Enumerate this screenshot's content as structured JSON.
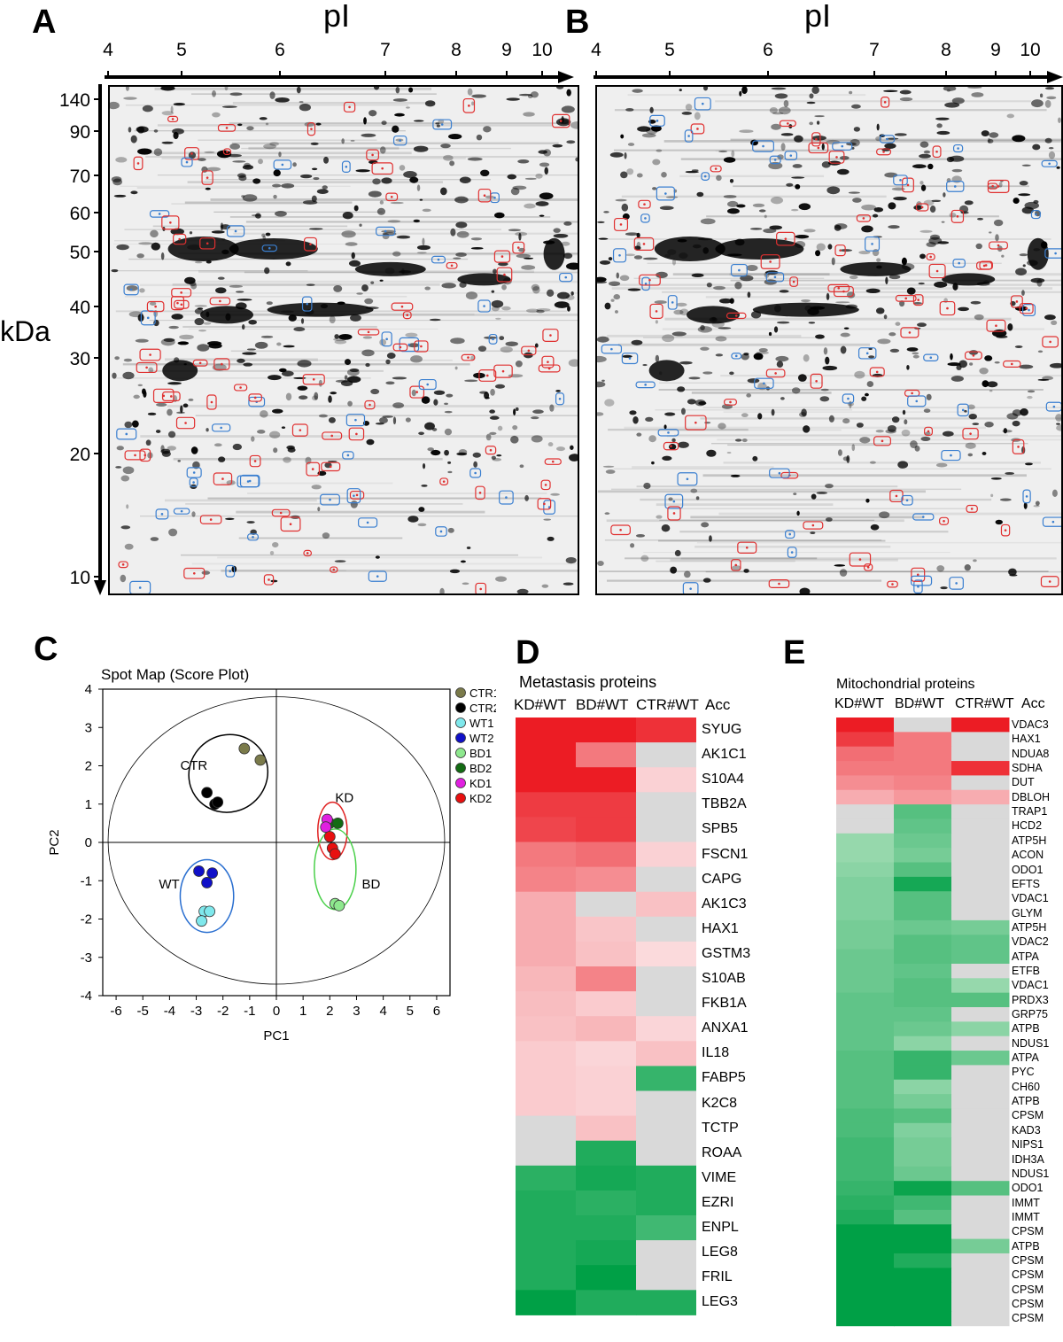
{
  "panels": {
    "A": "A",
    "B": "B",
    "C": "C",
    "D": "D",
    "E": "E"
  },
  "gel": {
    "x_axis_label": "pI",
    "y_axis_label": "kDa",
    "pi_ticks": [
      "4",
      "5",
      "6",
      "7",
      "8",
      "9",
      "10"
    ],
    "pi_values": [
      4,
      5,
      6,
      7,
      8,
      9,
      10
    ],
    "mw_ticks": [
      "140",
      "90",
      "70",
      "60",
      "50",
      "40",
      "30",
      "20",
      "10"
    ],
    "colors": {
      "up": "#e03030",
      "down": "#3a7fd0"
    }
  },
  "score_plot": {
    "title": "Spot Map (Score Plot)",
    "chart_data": {
      "type": "scatter",
      "title": "Spot Map (Score Plot)",
      "xlabel": "PC1",
      "ylabel": "PC2",
      "xlim": [
        -6.5,
        6.5
      ],
      "ylim": [
        -4,
        4
      ],
      "x_ticks": [
        -6,
        -5,
        -4,
        -3,
        -2,
        -1,
        0,
        1,
        2,
        3,
        4,
        5,
        6
      ],
      "y_ticks": [
        4,
        3,
        2,
        1,
        0,
        -1,
        -2,
        -3,
        -4
      ],
      "series": [
        {
          "name": "CTR1",
          "color": "#7a7a4a",
          "points": [
            [
              -1.2,
              2.45
            ],
            [
              -0.6,
              2.15
            ]
          ]
        },
        {
          "name": "CTR2",
          "color": "#000000",
          "points": [
            [
              -2.6,
              1.3
            ],
            [
              -2.3,
              1.0
            ],
            [
              -2.2,
              1.05
            ]
          ]
        },
        {
          "name": "WT1",
          "color": "#7fe8ec",
          "points": [
            [
              -2.7,
              -1.8
            ],
            [
              -2.5,
              -1.8
            ],
            [
              -2.8,
              -2.05
            ]
          ]
        },
        {
          "name": "WT2",
          "color": "#1010c8",
          "points": [
            [
              -2.9,
              -0.75
            ],
            [
              -2.4,
              -0.8
            ],
            [
              -2.6,
              -1.05
            ]
          ]
        },
        {
          "name": "BD1",
          "color": "#8ee88e",
          "points": [
            [
              2.2,
              -1.6
            ],
            [
              2.35,
              -1.65
            ]
          ]
        },
        {
          "name": "BD2",
          "color": "#136b13",
          "points": [
            [
              2.0,
              0.5
            ],
            [
              2.3,
              0.5
            ]
          ]
        },
        {
          "name": "KD1",
          "color": "#e020e0",
          "points": [
            [
              1.9,
              0.6
            ],
            [
              1.85,
              0.4
            ]
          ]
        },
        {
          "name": "KD2",
          "color": "#e81010",
          "points": [
            [
              2.0,
              0.15
            ],
            [
              2.1,
              -0.15
            ],
            [
              2.2,
              -0.3
            ]
          ]
        }
      ],
      "groups": [
        {
          "label": "CTR",
          "color": "#000000"
        },
        {
          "label": "WT",
          "color": "#2a6fd0"
        },
        {
          "label": "KD",
          "color": "#e02020"
        },
        {
          "label": "BD",
          "color": "#4ad04a"
        }
      ]
    }
  },
  "metastasis": {
    "title": "Metastasis proteins",
    "col_labels": [
      "KD#WT",
      "BD#WT",
      "CTR#WT",
      "Acc"
    ],
    "chart_data": {
      "type": "heatmap",
      "title": "Metastasis proteins",
      "columns": [
        "KD#WT",
        "BD#WT",
        "CTR#WT"
      ],
      "rows": [
        "SYUG",
        "AK1C1",
        "S10A4",
        "TBB2A",
        "SPB5",
        "FSCN1",
        "CAPG",
        "AK1C3",
        "HAX1",
        "GSTM3",
        "S10AB",
        "FKB1A",
        "ANXA1",
        "IL18",
        "FABP5",
        "K2C8",
        "TCTP",
        "ROAA",
        "VIME",
        "EZRI",
        "ENPL",
        "LEG8",
        "FRIL",
        "LEG3"
      ],
      "values": [
        [
          1.0,
          1.0,
          0.9
        ],
        [
          1.0,
          0.55,
          null
        ],
        [
          1.0,
          1.0,
          0.12
        ],
        [
          0.85,
          0.85,
          null
        ],
        [
          0.8,
          0.85,
          null
        ],
        [
          0.55,
          0.6,
          0.12
        ],
        [
          0.5,
          0.45,
          null
        ],
        [
          0.3,
          null,
          0.2
        ],
        [
          0.3,
          0.18,
          null
        ],
        [
          0.3,
          0.2,
          0.08
        ],
        [
          0.25,
          0.5,
          null
        ],
        [
          0.22,
          0.15,
          null
        ],
        [
          0.2,
          0.25,
          0.1
        ],
        [
          0.15,
          0.1,
          0.2
        ],
        [
          0.15,
          0.12,
          -0.75
        ],
        [
          0.15,
          0.12,
          null
        ],
        [
          null,
          0.2,
          null
        ],
        [
          null,
          -0.85,
          null
        ],
        [
          -0.8,
          -0.9,
          -0.85
        ],
        [
          -0.85,
          -0.8,
          -0.85
        ],
        [
          -0.85,
          -0.85,
          -0.7
        ],
        [
          -0.85,
          -0.9,
          null
        ],
        [
          -0.85,
          -1.0,
          null
        ],
        [
          -1.0,
          -0.85,
          -0.85
        ]
      ]
    }
  },
  "mitochondrial": {
    "title": "Mitochondrial proteins",
    "col_labels": [
      "KD#WT",
      "BD#WT",
      "CTR#WT",
      "Acc"
    ],
    "chart_data": {
      "type": "heatmap",
      "title": "Mitochondrial proteins",
      "columns": [
        "KD#WT",
        "BD#WT",
        "CTR#WT"
      ],
      "rows": [
        "VDAC3",
        "HAX1",
        "NDUA8",
        "SDHA",
        "DUT",
        "DBLOH",
        "TRAP1",
        "HCD2",
        "ATP5H",
        "ACON",
        "ODO1",
        "EFTS",
        "VDAC1",
        "GLYM",
        "ATP5H",
        "VDAC2",
        "ATPA",
        "ETFB",
        "VDAC1",
        "PRDX3",
        "GRP75",
        "ATPB",
        "NDUS1",
        "ATPA",
        "PYC",
        "CH60",
        "ATPB",
        "CPSM",
        "KAD3",
        "NIPS1",
        "IDH3A",
        "NDUS1",
        "ODO1",
        "IMMT",
        "IMMT",
        "CPSM",
        "ATPB",
        "CPSM",
        "CPSM",
        "CPSM",
        "CPSM",
        "CPSM"
      ],
      "values": [
        [
          1.0,
          null,
          1.0
        ],
        [
          0.85,
          0.55,
          null
        ],
        [
          0.6,
          0.55,
          null
        ],
        [
          0.55,
          0.55,
          0.9
        ],
        [
          0.45,
          0.5,
          null
        ],
        [
          0.3,
          0.4,
          0.3
        ],
        [
          null,
          -0.6,
          null
        ],
        [
          null,
          -0.55,
          null
        ],
        [
          -0.3,
          -0.5,
          null
        ],
        [
          -0.3,
          -0.45,
          null
        ],
        [
          -0.35,
          -0.6,
          null
        ],
        [
          -0.4,
          -0.9,
          null
        ],
        [
          -0.4,
          -0.6,
          null
        ],
        [
          -0.4,
          -0.6,
          null
        ],
        [
          -0.45,
          -0.5,
          -0.45
        ],
        [
          -0.45,
          -0.6,
          -0.55
        ],
        [
          -0.5,
          -0.6,
          -0.55
        ],
        [
          -0.5,
          -0.55,
          null
        ],
        [
          -0.5,
          -0.6,
          -0.3
        ],
        [
          -0.55,
          -0.6,
          -0.6
        ],
        [
          -0.55,
          -0.55,
          null
        ],
        [
          -0.55,
          -0.5,
          -0.35
        ],
        [
          -0.55,
          -0.35,
          null
        ],
        [
          -0.6,
          -0.75,
          -0.5
        ],
        [
          -0.6,
          -0.75,
          null
        ],
        [
          -0.6,
          -0.35,
          null
        ],
        [
          -0.6,
          -0.45,
          null
        ],
        [
          -0.65,
          -0.6,
          null
        ],
        [
          -0.65,
          -0.4,
          null
        ],
        [
          -0.7,
          -0.45,
          null
        ],
        [
          -0.7,
          -0.45,
          null
        ],
        [
          -0.7,
          -0.5,
          null
        ],
        [
          -0.75,
          -0.95,
          -0.6
        ],
        [
          -0.8,
          -0.7,
          null
        ],
        [
          -0.85,
          -0.6,
          null
        ],
        [
          -1.0,
          -1.0,
          null
        ],
        [
          -1.0,
          -1.0,
          -0.45
        ],
        [
          -1.0,
          -0.85,
          null
        ],
        [
          -1.0,
          -1.0,
          null
        ],
        [
          -1.0,
          -1.0,
          null
        ],
        [
          -1.0,
          -1.0,
          null
        ],
        [
          -1.0,
          -1.0,
          null
        ]
      ]
    }
  }
}
